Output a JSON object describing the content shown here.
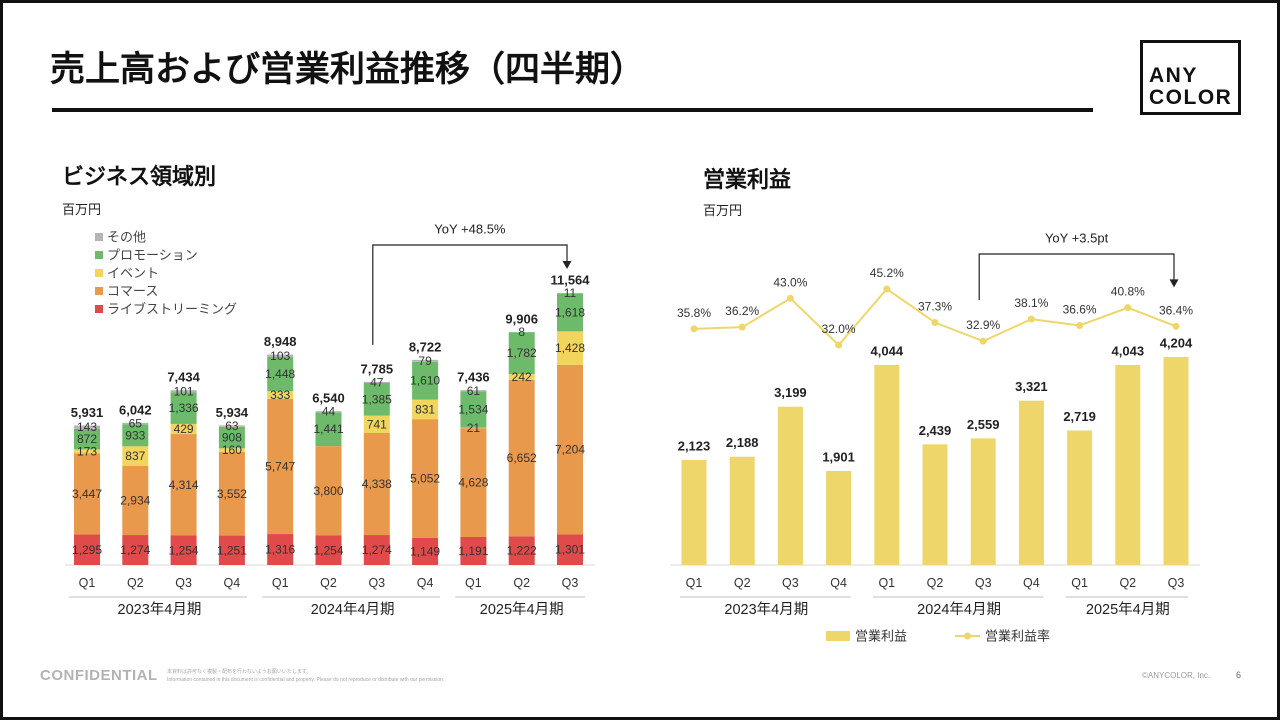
{
  "slide": {
    "title": "売上高および営業利益推移（四半期）",
    "logo": {
      "line1": "ANY",
      "line2": "COLOR"
    },
    "footer": {
      "confidential": "CONFIDENTIAL",
      "notice_ja": "本資料は許可なく複製・配布を行わないようお願いいたします。",
      "notice_en": "Information contained in this document is confidential and property. Please do not reproduce or distribute with our permission.",
      "copyright": "©ANYCOLOR, Inc.",
      "page": "6"
    }
  },
  "chart_data": [
    {
      "type": "bar",
      "stacked": true,
      "title": "ビジネス領域別",
      "unit": "百万円",
      "categories": [
        "Q1",
        "Q2",
        "Q3",
        "Q4",
        "Q1",
        "Q2",
        "Q3",
        "Q4",
        "Q1",
        "Q2",
        "Q3"
      ],
      "groups": [
        {
          "label": "2023年4月期",
          "start": 0,
          "end": 3
        },
        {
          "label": "2024年4月期",
          "start": 4,
          "end": 7
        },
        {
          "label": "2025年4月期",
          "start": 8,
          "end": 10
        }
      ],
      "series": [
        {
          "name": "ライブストリーミング",
          "color": "#e04a4b",
          "values": [
            1295,
            1274,
            1254,
            1251,
            1316,
            1254,
            1274,
            1149,
            1191,
            1222,
            1301
          ]
        },
        {
          "name": "コマース",
          "color": "#e9994b",
          "values": [
            3447,
            2934,
            4314,
            3552,
            5747,
            3800,
            4338,
            5052,
            4628,
            6652,
            7204
          ]
        },
        {
          "name": "イベント",
          "color": "#f2d55c",
          "values": [
            173,
            837,
            429,
            160,
            333,
            null,
            741,
            831,
            21,
            242,
            1428
          ]
        },
        {
          "name": "プロモーション",
          "color": "#6dbb6a",
          "values": [
            872,
            933,
            1336,
            908,
            1448,
            1441,
            1385,
            1610,
            1534,
            1782,
            1618
          ]
        },
        {
          "name": "その他",
          "color": "#b5b5b5",
          "values": [
            143,
            65,
            101,
            63,
            103,
            44,
            47,
            79,
            61,
            8,
            11
          ]
        }
      ],
      "totals": [
        5931,
        6042,
        7434,
        5934,
        8948,
        6540,
        7785,
        8722,
        7436,
        9906,
        11564
      ],
      "legend_position": "top-left",
      "annotation": {
        "text": "YoY +48.5%",
        "from_index": 6,
        "to_index": 10
      }
    },
    {
      "type": "bar",
      "title": "営業利益",
      "unit": "百万円",
      "categories": [
        "Q1",
        "Q2",
        "Q3",
        "Q4",
        "Q1",
        "Q2",
        "Q3",
        "Q4",
        "Q1",
        "Q2",
        "Q3"
      ],
      "groups": [
        {
          "label": "2023年4月期",
          "start": 0,
          "end": 3
        },
        {
          "label": "2024年4月期",
          "start": 4,
          "end": 7
        },
        {
          "label": "2025年4月期",
          "start": 8,
          "end": 10
        }
      ],
      "series": [
        {
          "name": "営業利益",
          "type": "bar",
          "color": "#efd66a",
          "values": [
            2123,
            2188,
            3199,
            1901,
            4044,
            2439,
            2559,
            3321,
            2719,
            4043,
            4204
          ]
        },
        {
          "name": "営業利益率",
          "type": "line",
          "unit": "%",
          "color": "#efd66a",
          "values": [
            35.8,
            36.2,
            43.0,
            32.0,
            45.2,
            37.3,
            32.9,
            38.1,
            36.6,
            40.8,
            36.4
          ]
        }
      ],
      "legend_position": "bottom",
      "annotation": {
        "text": "YoY +3.5pt",
        "from_index": 6,
        "to_index": 10
      }
    }
  ]
}
